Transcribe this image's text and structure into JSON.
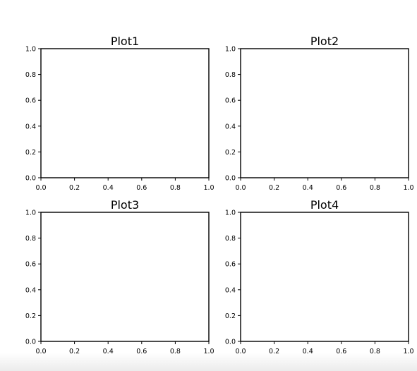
{
  "figure": {
    "background": "#ffffff",
    "axis_color": "#000000"
  },
  "chart_data": [
    {
      "type": "line",
      "title": "Plot1",
      "xlabel": "",
      "ylabel": "",
      "xlim": [
        0.0,
        1.0
      ],
      "ylim": [
        0.0,
        1.0
      ],
      "xticks": [
        "0.0",
        "0.2",
        "0.4",
        "0.6",
        "0.8",
        "1.0"
      ],
      "yticks": [
        "0.0",
        "0.2",
        "0.4",
        "0.6",
        "0.8",
        "1.0"
      ],
      "series": [],
      "grid": false,
      "position": "top-left"
    },
    {
      "type": "line",
      "title": "Plot2",
      "xlabel": "",
      "ylabel": "",
      "xlim": [
        0.0,
        1.0
      ],
      "ylim": [
        0.0,
        1.0
      ],
      "xticks": [
        "0.0",
        "0.2",
        "0.4",
        "0.6",
        "0.8",
        "1.0"
      ],
      "yticks": [
        "0.0",
        "0.2",
        "0.4",
        "0.6",
        "0.8",
        "1.0"
      ],
      "series": [],
      "grid": false,
      "position": "top-right"
    },
    {
      "type": "line",
      "title": "Plot3",
      "xlabel": "",
      "ylabel": "",
      "xlim": [
        0.0,
        1.0
      ],
      "ylim": [
        0.0,
        1.0
      ],
      "xticks": [
        "0.0",
        "0.2",
        "0.4",
        "0.6",
        "0.8",
        "1.0"
      ],
      "yticks": [
        "0.0",
        "0.2",
        "0.4",
        "0.6",
        "0.8",
        "1.0"
      ],
      "series": [],
      "grid": false,
      "position": "bottom-left"
    },
    {
      "type": "line",
      "title": "Plot4",
      "xlabel": "",
      "ylabel": "",
      "xlim": [
        0.0,
        1.0
      ],
      "ylim": [
        0.0,
        1.0
      ],
      "xticks": [
        "0.0",
        "0.2",
        "0.4",
        "0.6",
        "0.8",
        "1.0"
      ],
      "yticks": [
        "0.0",
        "0.2",
        "0.4",
        "0.6",
        "0.8",
        "1.0"
      ],
      "series": [],
      "grid": false,
      "position": "bottom-right"
    }
  ]
}
